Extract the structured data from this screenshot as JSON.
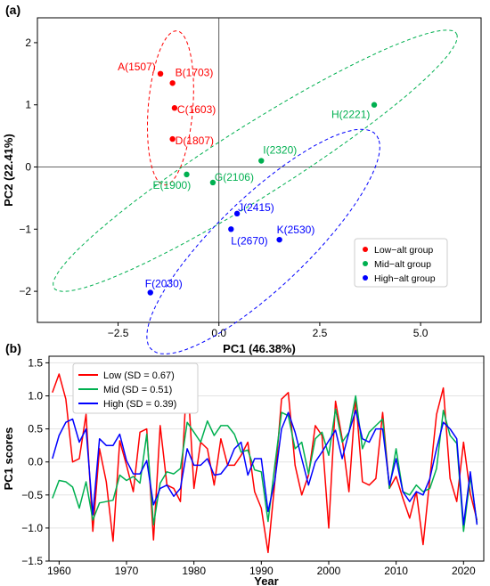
{
  "chart_data": [
    {
      "panel": "(a)",
      "type": "scatter",
      "xlabel": "PC1 (46.38%)",
      "ylabel": "PC2 (22.41%)",
      "xlim": [
        -4.5,
        6.5
      ],
      "ylim": [
        -2.5,
        2.4
      ],
      "xticks": [
        -2.5,
        0.0,
        2.5,
        5.0
      ],
      "yticks": [
        -2,
        -1,
        0,
        1,
        2
      ],
      "reference_lines": {
        "x": 0,
        "y": 0
      },
      "legend_position": "bottom-right",
      "groups": [
        {
          "name": "Low−alt group",
          "color": "#ff0000",
          "points": [
            {
              "label": "A(1507)",
              "x": -1.45,
              "y": 1.5
            },
            {
              "label": "B(1703)",
              "x": -1.15,
              "y": 1.35
            },
            {
              "label": "C(1603)",
              "x": -1.1,
              "y": 0.95
            },
            {
              "label": "D(1807)",
              "x": -1.15,
              "y": 0.45
            }
          ],
          "ellipse": {
            "center": [
              -1.2,
              0.95
            ],
            "rx": 0.55,
            "ry": 1.25,
            "angle": -8
          }
        },
        {
          "name": "Mid−alt group",
          "color": "#00b050",
          "points": [
            {
              "label": "E(1900)",
              "x": -0.8,
              "y": -0.12
            },
            {
              "label": "G(2106)",
              "x": -0.15,
              "y": -0.25
            },
            {
              "label": "I(2320)",
              "x": 1.05,
              "y": 0.1
            },
            {
              "label": "H(2221)",
              "x": 3.85,
              "y": 1.0
            }
          ],
          "ellipse": {
            "center": [
              0.9,
              0.1
            ],
            "rx": 5.4,
            "ry": 0.62,
            "angle": 22
          }
        },
        {
          "name": "High−alt group",
          "color": "#0000ff",
          "points": [
            {
              "label": "J(2415)",
              "x": 0.45,
              "y": -0.75
            },
            {
              "label": "L(2670)",
              "x": 0.3,
              "y": -1.0
            },
            {
              "label": "K(2530)",
              "x": 1.5,
              "y": -1.17
            },
            {
              "label": "F(2030)",
              "x": -1.7,
              "y": -2.02
            }
          ],
          "ellipse": {
            "center": [
              1.1,
              -1.2
            ],
            "rx": 3.3,
            "ry": 0.85,
            "angle": 30
          }
        }
      ]
    },
    {
      "panel": "(b)",
      "type": "line",
      "xlabel": "Year",
      "ylabel": "PC1 scores",
      "xlim": [
        1958.5,
        2023
      ],
      "ylim": [
        -1.5,
        1.6
      ],
      "xticks": [
        1960,
        1970,
        1980,
        1990,
        2000,
        2010,
        2020
      ],
      "yticks": [
        -1.5,
        -1.0,
        -0.5,
        0.0,
        0.5,
        1.0,
        1.5
      ],
      "grid": true,
      "legend_position": "top-left",
      "x": [
        1959,
        1960,
        1961,
        1962,
        1963,
        1964,
        1965,
        1966,
        1967,
        1968,
        1969,
        1970,
        1971,
        1972,
        1973,
        1974,
        1975,
        1976,
        1977,
        1978,
        1979,
        1980,
        1981,
        1982,
        1983,
        1984,
        1985,
        1986,
        1987,
        1988,
        1989,
        1990,
        1991,
        1992,
        1993,
        1994,
        1995,
        1996,
        1997,
        1998,
        1999,
        2000,
        2001,
        2002,
        2003,
        2004,
        2005,
        2006,
        2007,
        2008,
        2009,
        2010,
        2011,
        2012,
        2013,
        2014,
        2015,
        2016,
        2017,
        2018,
        2019,
        2020,
        2021,
        2022
      ],
      "series": [
        {
          "name": "Low (SD = 0.67)",
          "color": "#ff0000",
          "values": [
            1.05,
            1.33,
            0.95,
            0.0,
            0.05,
            0.72,
            -1.05,
            0.2,
            -0.3,
            -1.2,
            0.32,
            -0.05,
            -0.45,
            0.45,
            0.5,
            -1.18,
            0.55,
            -0.35,
            -0.4,
            -0.6,
            1.38,
            -0.4,
            0.3,
            0.2,
            -0.35,
            0.35,
            -0.05,
            -0.05,
            0.1,
            0.3,
            -0.45,
            -0.7,
            -1.37,
            -0.3,
            0.95,
            1.05,
            -0.05,
            -0.5,
            -0.2,
            0.55,
            0.4,
            -1.0,
            0.92,
            0.35,
            -0.45,
            0.98,
            -0.3,
            -0.35,
            -0.25,
            0.75,
            -0.4,
            -0.22,
            -0.55,
            -0.85,
            -0.45,
            -1.25,
            -0.25,
            0.72,
            1.12,
            -0.25,
            -0.6,
            0.3,
            -0.48,
            -0.88
          ]
        },
        {
          "name": "Mid (SD = 0.51)",
          "color": "#00b050",
          "values": [
            -0.55,
            -0.28,
            -0.3,
            -0.38,
            -0.7,
            -0.3,
            -0.88,
            -0.62,
            -0.6,
            -0.58,
            -0.2,
            -0.28,
            -0.22,
            -0.32,
            0.42,
            -0.95,
            -0.32,
            -0.15,
            -0.18,
            -0.1,
            0.6,
            0.45,
            0.3,
            0.62,
            0.4,
            0.55,
            0.55,
            0.42,
            0.15,
            0.18,
            -0.12,
            -0.15,
            -0.9,
            -0.05,
            0.75,
            0.7,
            0.2,
            0.3,
            -0.18,
            0.35,
            0.45,
            0.1,
            0.8,
            0.3,
            0.45,
            1.0,
            0.2,
            0.45,
            0.55,
            0.65,
            -0.4,
            0.2,
            -0.45,
            -0.5,
            -0.35,
            -0.45,
            -0.4,
            -0.1,
            0.78,
            0.4,
            0.28,
            -1.05,
            -0.22,
            -0.92
          ]
        },
        {
          "name": "High (SD = 0.39)",
          "color": "#0000ff",
          "values": [
            0.05,
            0.4,
            0.6,
            0.65,
            0.3,
            0.5,
            -0.8,
            0.35,
            0.25,
            0.25,
            0.42,
            0.02,
            -0.18,
            -0.18,
            0.02,
            -0.65,
            -0.4,
            -0.35,
            -0.52,
            -0.4,
            0.2,
            -0.05,
            -0.05,
            0.05,
            -0.2,
            -0.18,
            -0.05,
            0.2,
            0.3,
            -0.2,
            0.05,
            0.05,
            -0.75,
            -0.28,
            0.5,
            0.75,
            0.45,
            0.05,
            -0.35,
            0.0,
            0.15,
            0.32,
            0.48,
            0.05,
            0.45,
            0.78,
            0.35,
            0.3,
            0.5,
            0.5,
            -0.35,
            0.05,
            -0.45,
            -0.6,
            -0.45,
            -0.5,
            -0.25,
            0.2,
            0.6,
            0.5,
            0.35,
            -0.95,
            -0.15,
            -0.95
          ]
        }
      ]
    }
  ]
}
